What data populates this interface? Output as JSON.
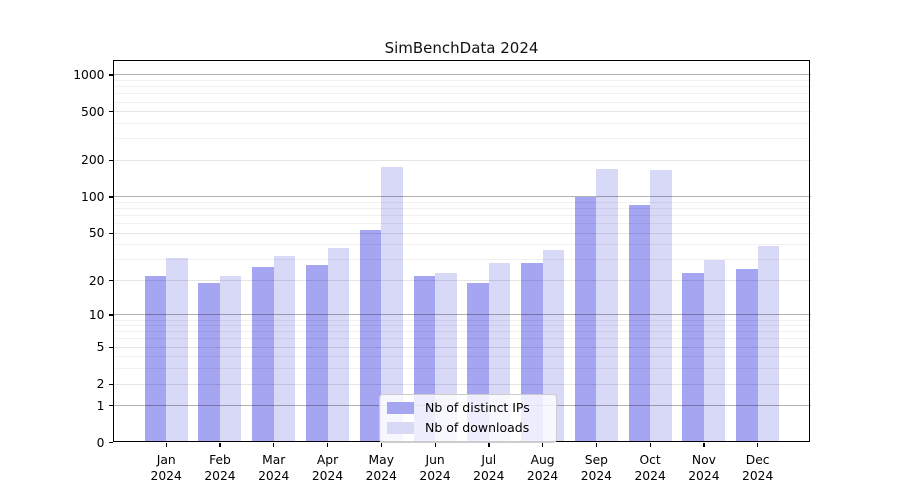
{
  "chart_data": {
    "type": "bar",
    "title": "SimBenchData 2024",
    "x_year": "2024",
    "categories": [
      "Jan",
      "Feb",
      "Mar",
      "Apr",
      "May",
      "Jun",
      "Jul",
      "Aug",
      "Sep",
      "Oct",
      "Nov",
      "Dec"
    ],
    "series": [
      {
        "name": "Nb of distinct IPs",
        "color": "#a5a5f2",
        "values": [
          22,
          19,
          26,
          27,
          53,
          22,
          19,
          28,
          100,
          86,
          23,
          25
        ]
      },
      {
        "name": "Nb of downloads",
        "color": "#d8d8f7",
        "values": [
          31,
          22,
          32,
          38,
          178,
          23,
          28,
          36,
          170,
          167,
          30,
          39
        ]
      }
    ],
    "y_scale": "log1p",
    "ylim": [
      0,
      1300
    ],
    "y_ticks": [
      {
        "value": 0,
        "label": "0"
      },
      {
        "value": 1,
        "label": "1"
      },
      {
        "value": 2,
        "label": "2"
      },
      {
        "value": 5,
        "label": "5"
      },
      {
        "value": 10,
        "label": "10"
      },
      {
        "value": 20,
        "label": "20"
      },
      {
        "value": 50,
        "label": "50"
      },
      {
        "value": 100,
        "label": "100"
      },
      {
        "value": 200,
        "label": "200"
      },
      {
        "value": 500,
        "label": "500"
      },
      {
        "value": 1000,
        "label": "1000"
      }
    ],
    "y_minor_ticks": [
      3,
      4,
      6,
      7,
      8,
      9,
      30,
      40,
      60,
      70,
      80,
      90,
      300,
      400,
      600,
      700,
      800,
      900
    ],
    "grid": true,
    "legend_position": "lower center"
  }
}
